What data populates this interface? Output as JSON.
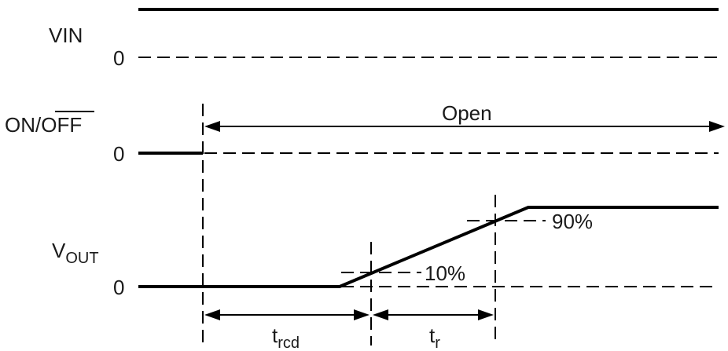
{
  "signals": {
    "vin": {
      "label": "VIN",
      "zero": "0"
    },
    "on_off": {
      "label_on": "ON/",
      "label_off": "OFF",
      "zero": "0",
      "state": "Open"
    },
    "vout": {
      "label_main": "V",
      "label_sub": "OUT",
      "zero": "0"
    }
  },
  "thresholds": {
    "high": "90%",
    "low": "10%"
  },
  "intervals": {
    "trcd_main": "t",
    "trcd_sub": "rcd",
    "tr_main": "t",
    "tr_sub": "r"
  },
  "colors": {
    "stroke": "#000000",
    "text": "#1a1a1a",
    "background": "#ffffff"
  }
}
